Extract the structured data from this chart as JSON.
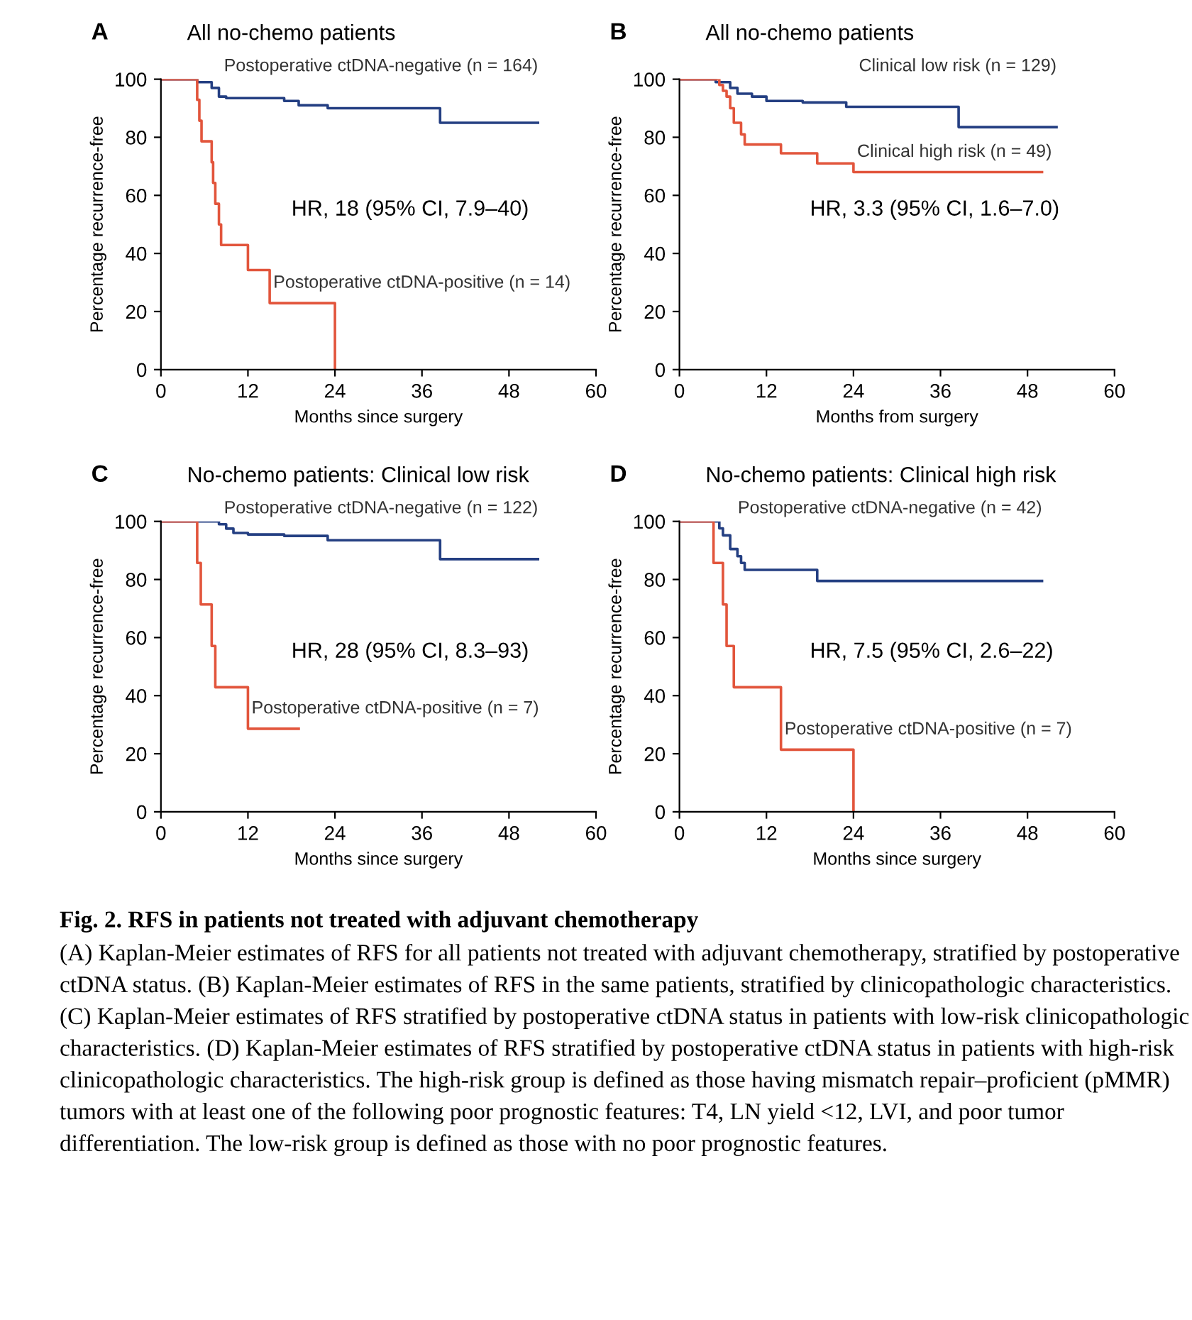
{
  "chart_data": [
    {
      "type": "step",
      "title": "All no-chemo patients",
      "xlabel": "Months since surgery",
      "ylabel": "Percentage recurrence-free",
      "xlim": [
        0,
        60
      ],
      "ylim": [
        0,
        100
      ],
      "xticks": [
        0,
        12,
        24,
        36,
        48,
        60
      ],
      "yticks": [
        0,
        20,
        40,
        60,
        80,
        100
      ],
      "grid": false,
      "legend": false,
      "annotations": [
        "A",
        "HR, 18 (95% CI, 7.9–40)"
      ],
      "series": [
        {
          "name": "Postoperative ctDNA-negative (n = 164)",
          "color": "#243f82",
          "x": [
            0,
            5,
            7,
            8,
            9,
            17,
            19,
            23,
            38.5,
            52
          ],
          "values": [
            100,
            99,
            97,
            94,
            93.5,
            92.5,
            91,
            90,
            85,
            85
          ]
        },
        {
          "name": "Postoperative ctDNA-positive (n = 14)",
          "color": "#e2553c",
          "x": [
            0,
            5,
            5.3,
            5.6,
            7,
            7.2,
            7.5,
            8,
            8.3,
            12,
            15,
            24
          ],
          "values": [
            100,
            92.9,
            85.7,
            78.6,
            71.4,
            64.3,
            57.1,
            50,
            42.9,
            34.3,
            22.9,
            0
          ]
        }
      ]
    },
    {
      "type": "step",
      "title": "All no-chemo patients",
      "xlabel": "Months from surgery",
      "ylabel": "Percentage recurrence-free",
      "xlim": [
        0,
        60
      ],
      "ylim": [
        0,
        100
      ],
      "xticks": [
        0,
        12,
        24,
        36,
        48,
        60
      ],
      "yticks": [
        0,
        20,
        40,
        60,
        80,
        100
      ],
      "grid": false,
      "legend": false,
      "annotations": [
        "B",
        "HR, 3.3 (95% CI, 1.6–7.0)"
      ],
      "series": [
        {
          "name": "Clinical low risk (n = 129)",
          "color": "#243f82",
          "x": [
            0,
            5,
            7,
            8,
            10,
            12,
            17,
            23,
            38.5,
            52
          ],
          "values": [
            100,
            99,
            97,
            95,
            94,
            92.5,
            92,
            90.5,
            83.5,
            83.5
          ]
        },
        {
          "name": "Clinical high risk (n = 49)",
          "color": "#e2553c",
          "x": [
            0,
            5.5,
            6,
            6.5,
            7,
            7.5,
            8.5,
            9,
            14,
            19,
            24,
            50
          ],
          "values": [
            100,
            98,
            96,
            94,
            90,
            85,
            81,
            77.5,
            74.5,
            71,
            68,
            68
          ]
        }
      ]
    },
    {
      "type": "step",
      "title": "No-chemo patients: Clinical low risk",
      "xlabel": "Months since surgery",
      "ylabel": "Percentage recurrence-free",
      "xlim": [
        0,
        60
      ],
      "ylim": [
        0,
        100
      ],
      "xticks": [
        0,
        12,
        24,
        36,
        48,
        60
      ],
      "yticks": [
        0,
        20,
        40,
        60,
        80,
        100
      ],
      "grid": false,
      "legend": false,
      "annotations": [
        "C",
        "HR, 28 (95% CI, 8.3–93)"
      ],
      "series": [
        {
          "name": "Postoperative ctDNA-negative (n = 122)",
          "color": "#243f82",
          "x": [
            0,
            8,
            9,
            10,
            12,
            17,
            23,
            38.5,
            52
          ],
          "values": [
            100,
            99,
            97.5,
            96,
            95.5,
            95,
            93.5,
            87,
            87
          ]
        },
        {
          "name": "Postoperative ctDNA-positive (n = 7)",
          "color": "#e2553c",
          "x": [
            0,
            5,
            5.5,
            7,
            7.5,
            12,
            19
          ],
          "values": [
            100,
            85.7,
            71.4,
            57.1,
            42.9,
            28.6,
            28.6
          ]
        }
      ]
    },
    {
      "type": "step",
      "title": "No-chemo patients: Clinical high risk",
      "xlabel": "Months since surgery",
      "ylabel": "Percentage recurrence-free",
      "xlim": [
        0,
        60
      ],
      "ylim": [
        0,
        100
      ],
      "xticks": [
        0,
        12,
        24,
        36,
        48,
        60
      ],
      "yticks": [
        0,
        20,
        40,
        60,
        80,
        100
      ],
      "grid": false,
      "legend": false,
      "annotations": [
        "D",
        "HR, 7.5 (95% CI, 2.6–22)"
      ],
      "series": [
        {
          "name": "Postoperative ctDNA-negative (n = 42)",
          "color": "#243f82",
          "x": [
            0,
            5.5,
            6,
            7,
            8,
            8.5,
            9,
            19,
            50
          ],
          "values": [
            100,
            97.6,
            95.2,
            90.5,
            88,
            85.7,
            83.3,
            79.5,
            79.5
          ]
        },
        {
          "name": "Postoperative ctDNA-positive (n = 7)",
          "color": "#e2553c",
          "x": [
            0,
            4.7,
            6,
            6.5,
            7.5,
            14,
            24
          ],
          "values": [
            100,
            85.7,
            71.4,
            57.1,
            42.9,
            21.4,
            0
          ]
        }
      ]
    },
    {
      "type": "other",
      "title": "Fig. 2. RFS in patients not treated with adjuvant chemotherapy",
      "annotations": [
        "(A) Kaplan-Meier estimates of RFS for all patients not treated with adjuvant chemotherapy, stratified by postoperative ctDNA status. (B) Kaplan-Meier estimates of RFS in the same patients, stratified by clinicopathologic characteristics. (C) Kaplan-Meier estimates of RFS stratified by postoperative ctDNA status in patients with low-risk clinicopathologic characteristics. (D) Kaplan-Meier estimates of RFS stratified by postoperative ctDNA status in patients with high-risk clinicopathologic characteristics. The high-risk group is defined as those having mismatch repair–proficient (pMMR) tumors with at least one of the following poor prognostic features: T4, LN yield <12, LVI, and poor tumor differentiation. The low-risk group is defined as those with no poor prognostic features."
      ]
    }
  ]
}
